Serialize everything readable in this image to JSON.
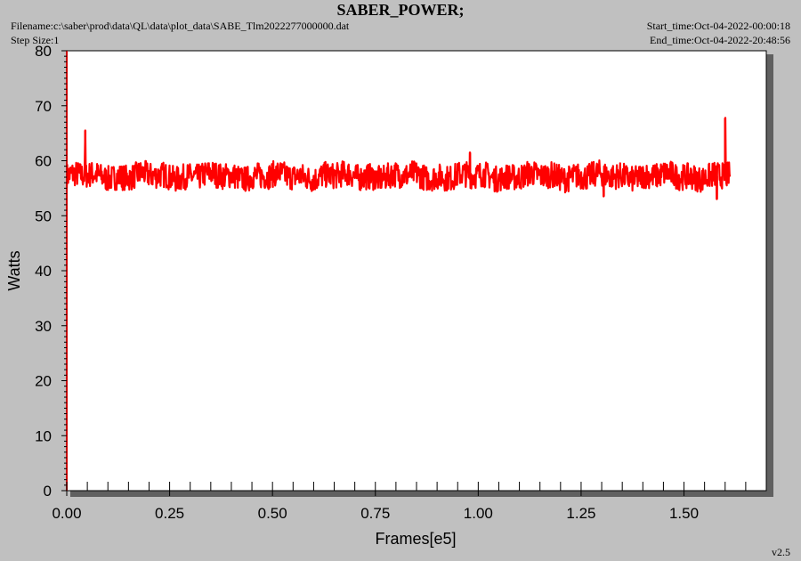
{
  "header": {
    "title": "SABER_POWER;",
    "filename": "Filename:c:\\saber\\prod\\data\\QL\\data\\plot_data\\SABE_Tlm2022277000000.dat",
    "step_size": "Step Size:1",
    "start_time": "Start_time:Oct-04-2022-00:00:18",
    "end_time": "End_time:Oct-04-2022-20:48:56"
  },
  "version": "v2.5",
  "colors": {
    "series": "#ff0000",
    "axis": "#cc0000",
    "background": "#c0c0c0",
    "plot": "#ffffff",
    "shadow": "#606060"
  },
  "chart_data": {
    "type": "line",
    "title": "SABER_POWER;",
    "xlabel": "Frames[e5]",
    "ylabel": "Watts",
    "xlim": [
      0,
      1.7
    ],
    "ylim": [
      0,
      80
    ],
    "x_ticks": [
      "0.00",
      "0.25",
      "0.50",
      "0.75",
      "1.00",
      "1.25",
      "1.50"
    ],
    "y_ticks": [
      "0",
      "10",
      "20",
      "30",
      "40",
      "50",
      "60",
      "70",
      "80"
    ],
    "grid": false,
    "series": [
      {
        "x_range": [
          0,
          1.612
        ],
        "band_min": 55,
        "band_max": 60,
        "mean": 57.2,
        "spikes": [
          {
            "x": 0.045,
            "y": 65.5
          },
          {
            "x": 0.98,
            "y": 61.5
          },
          {
            "x": 1.305,
            "y": 53.5
          },
          {
            "x": 1.58,
            "y": 53
          },
          {
            "x": 1.6,
            "y": 67.8
          }
        ]
      }
    ]
  }
}
